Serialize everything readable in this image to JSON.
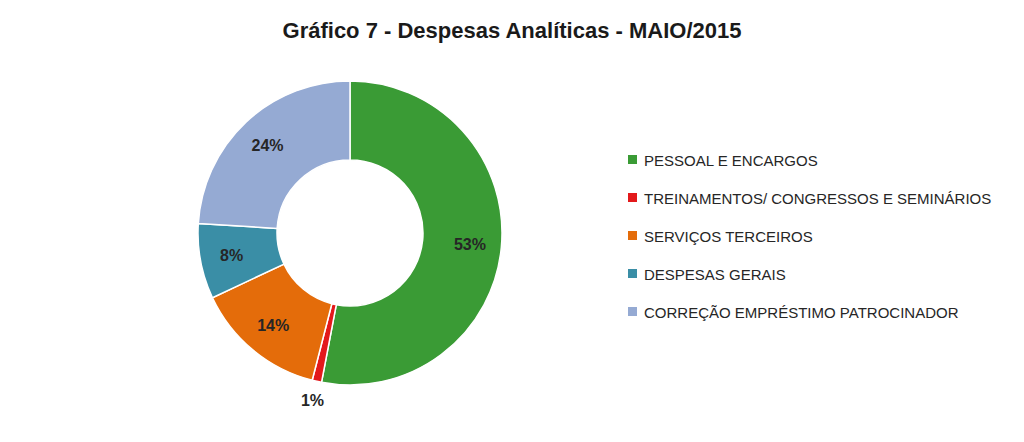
{
  "chart_data": {
    "type": "pie",
    "title": "Gráfico 7 - Despesas Analíticas - MAIO/2015",
    "categories": [
      "PESSOAL E ENCARGOS",
      "TREINAMENTOS/ CONGRESSOS E SEMINÁRIOS",
      "SERVIÇOS TERCEIROS",
      "DESPESAS GERAIS",
      "CORREÇÃO EMPRÉSTIMO PATROCINADOR"
    ],
    "values": [
      53,
      1,
      14,
      8,
      24
    ],
    "value_labels": [
      "53%",
      "1%",
      "14%",
      "8%",
      "24%"
    ],
    "colors": [
      "#3a9b35",
      "#e3191b",
      "#e46c0a",
      "#3a8ea6",
      "#95aad3"
    ],
    "data_labels": true,
    "legend": "right"
  }
}
